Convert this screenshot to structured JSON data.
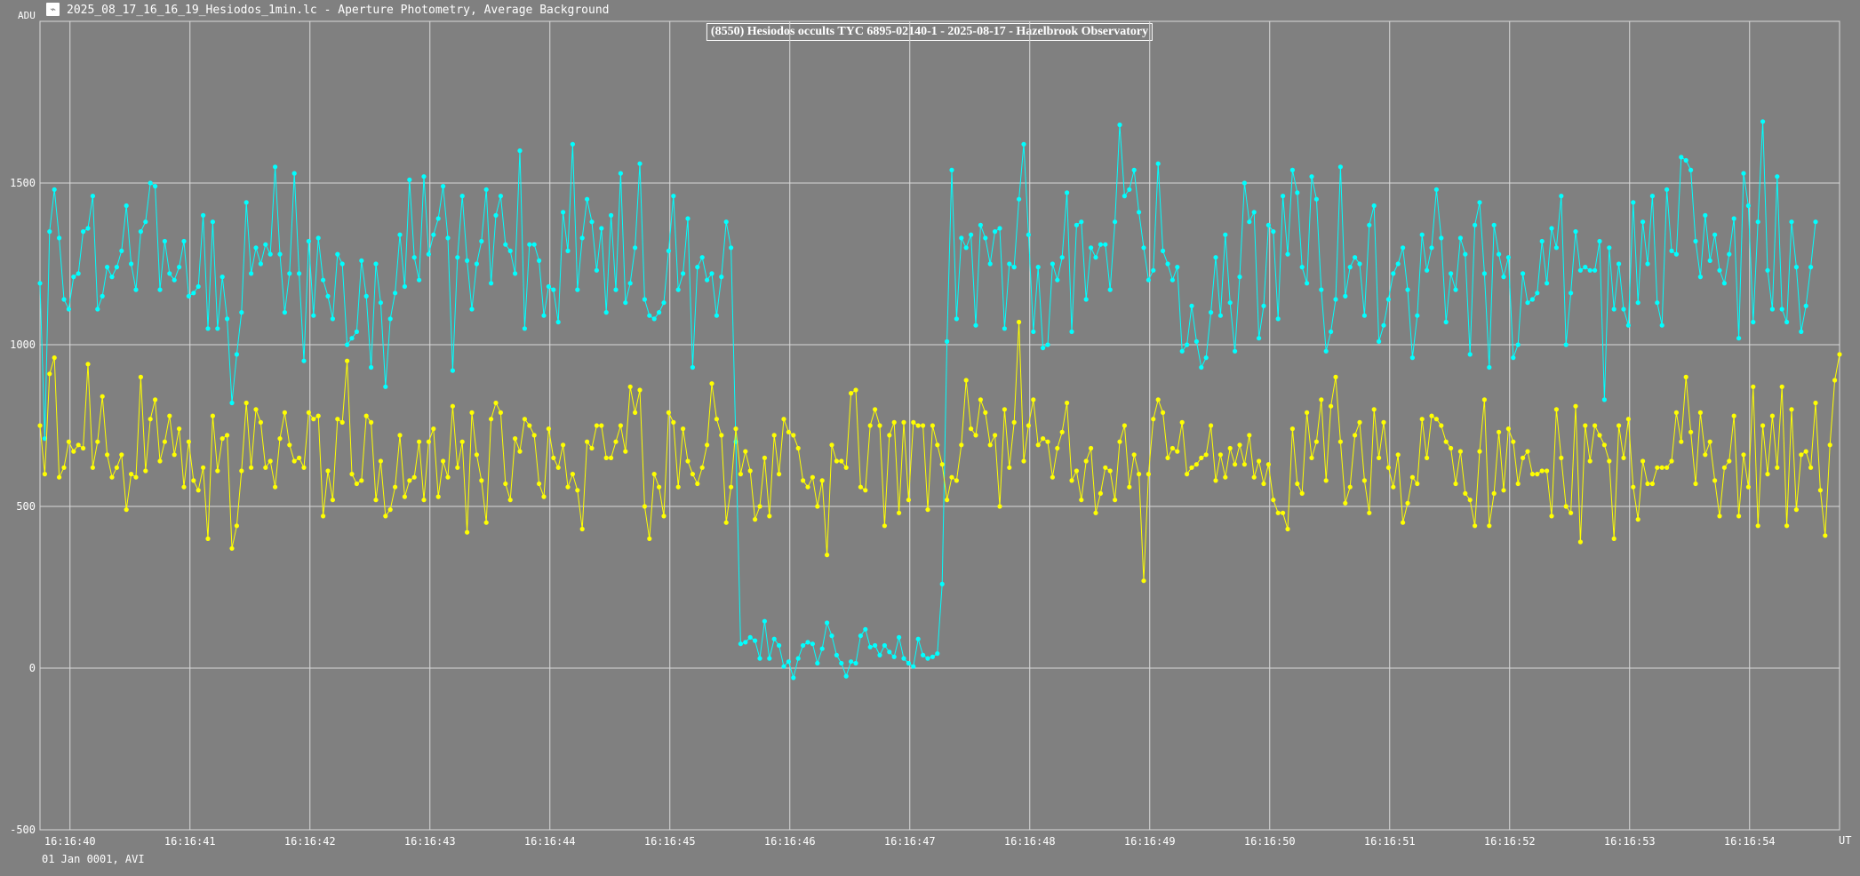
{
  "window": {
    "title": "2025_08_17_16_16_19_Hesiodos_1min.lc - Aperture Photometry, Average Background",
    "icon": "lightcurve-app-icon"
  },
  "footer": {
    "date_note": "01 Jan 0001, AVI"
  },
  "colors": {
    "background": "#808080",
    "grid": "#d8d8d8",
    "target": "#00ffff",
    "comparison": "#ffff00"
  },
  "chart_data": {
    "type": "line",
    "title": "(8550) Hesiodos occults TYC 6895-02140-1 - 2025-08-17 - Hazelbrook Observatory",
    "ylabel": "ADU",
    "xlabel": "UT",
    "ylim": [
      -500,
      2000
    ],
    "xlim": [
      39.75,
      54.75
    ],
    "x_unit": "seconds after 16:16:00 UT",
    "yticks": [
      "-500",
      "0",
      "500",
      "1000",
      "1500"
    ],
    "xticks": [
      "16:16:40",
      "16:16:41",
      "16:16:42",
      "16:16:43",
      "16:16:44",
      "16:16:45",
      "16:16:46",
      "16:16:47",
      "16:16:48",
      "16:16:49",
      "16:16:50",
      "16:16:51",
      "16:16:52",
      "16:16:53",
      "16:16:54"
    ],
    "grid": true,
    "markers": "dots",
    "x_start": 39.75,
    "x_step": 0.04,
    "series": [
      {
        "color": "#00ffff",
        "values": [
          1190,
          710,
          1350,
          1480,
          1330,
          1140,
          1110,
          1210,
          1220,
          1350,
          1360,
          1460,
          1110,
          1150,
          1240,
          1210,
          1240,
          1290,
          1430,
          1250,
          1170,
          1350,
          1380,
          1500,
          1490,
          1170,
          1320,
          1220,
          1200,
          1240,
          1320,
          1150,
          1160,
          1180,
          1400,
          1050,
          1380,
          1050,
          1210,
          1080,
          820,
          970,
          1100,
          1440,
          1220,
          1300,
          1250,
          1310,
          1280,
          1550,
          1280,
          1100,
          1220,
          1530,
          1220,
          950,
          1320,
          1090,
          1330,
          1200,
          1150,
          1080,
          1280,
          1250,
          1000,
          1020,
          1040,
          1260,
          1150,
          930,
          1250,
          1130,
          870,
          1080,
          1160,
          1340,
          1180,
          1510,
          1270,
          1200,
          1520,
          1280,
          1340,
          1390,
          1490,
          1330,
          920,
          1270,
          1460,
          1260,
          1110,
          1250,
          1320,
          1480,
          1190,
          1400,
          1460,
          1310,
          1290,
          1220,
          1600,
          1050,
          1310,
          1310,
          1260,
          1090,
          1180,
          1170,
          1070,
          1410,
          1290,
          1620,
          1170,
          1330,
          1450,
          1380,
          1230,
          1360,
          1100,
          1400,
          1170,
          1530,
          1130,
          1190,
          1300,
          1560,
          1140,
          1090,
          1080,
          1100,
          1130,
          1290,
          1460,
          1170,
          1220,
          1390,
          930,
          1240,
          1270,
          1200,
          1220,
          1090,
          1210,
          1380,
          1300,
          700,
          75,
          80,
          95,
          85,
          30,
          145,
          30,
          90,
          70,
          5,
          20,
          -30,
          30,
          70,
          80,
          75,
          15,
          60,
          140,
          100,
          40,
          15,
          -25,
          20,
          15,
          100,
          120,
          65,
          70,
          40,
          70,
          50,
          35,
          95,
          30,
          15,
          5,
          90,
          40,
          30,
          35,
          45,
          260,
          1010,
          1540,
          1080,
          1330,
          1300,
          1340,
          1060,
          1370,
          1330,
          1250,
          1350,
          1360,
          1050,
          1250,
          1240,
          1450,
          1620,
          1340,
          1040,
          1240,
          990,
          1000,
          1250,
          1200,
          1270,
          1470,
          1040,
          1370,
          1380,
          1140,
          1300,
          1270,
          1310,
          1310,
          1170,
          1380,
          1680,
          1460,
          1480,
          1540,
          1410,
          1300,
          1200,
          1230,
          1560,
          1290,
          1250,
          1200,
          1240,
          980,
          1000,
          1120,
          1010,
          930,
          960,
          1100,
          1270,
          1090,
          1340,
          1130,
          980,
          1210,
          1500,
          1380,
          1410,
          1020,
          1120,
          1370,
          1350,
          1080,
          1460,
          1280,
          1540,
          1470,
          1240,
          1190,
          1520,
          1450,
          1170,
          980,
          1040,
          1140,
          1550,
          1150,
          1240,
          1270,
          1250,
          1090,
          1370,
          1430,
          1010,
          1060,
          1140,
          1220,
          1250,
          1300,
          1170,
          960,
          1090,
          1340,
          1230,
          1300,
          1480,
          1330,
          1070,
          1220,
          1170,
          1330,
          1280,
          970,
          1370,
          1440,
          1220,
          930,
          1370,
          1280,
          1210,
          1270,
          960,
          1000,
          1220,
          1130,
          1140,
          1160,
          1320,
          1190,
          1360,
          1300,
          1460,
          1000,
          1160,
          1350,
          1230,
          1240,
          1230,
          1230,
          1320,
          830,
          1300,
          1110,
          1250,
          1110,
          1060,
          1440,
          1130,
          1380,
          1250,
          1460,
          1130,
          1060,
          1480,
          1290,
          1280,
          1580,
          1570,
          1540,
          1320,
          1210,
          1400,
          1260,
          1340,
          1230,
          1190,
          1280,
          1390,
          1020,
          1530,
          1430,
          1070,
          1380,
          1690,
          1230,
          1110,
          1520,
          1110,
          1070,
          1380,
          1240,
          1040,
          1120,
          1240,
          1380
        ]
      },
      {
        "color": "#ffff00",
        "values": [
          750,
          600,
          910,
          960,
          590,
          620,
          700,
          670,
          690,
          680,
          940,
          620,
          700,
          840,
          660,
          590,
          620,
          660,
          490,
          600,
          590,
          900,
          610,
          770,
          830,
          640,
          700,
          780,
          660,
          740,
          560,
          700,
          580,
          550,
          620,
          400,
          780,
          610,
          710,
          720,
          370,
          440,
          610,
          820,
          620,
          800,
          760,
          620,
          640,
          560,
          710,
          790,
          690,
          640,
          650,
          620,
          790,
          770,
          780,
          470,
          610,
          520,
          770,
          760,
          950,
          600,
          570,
          580,
          780,
          760,
          520,
          640,
          470,
          490,
          560,
          720,
          530,
          580,
          590,
          700,
          520,
          700,
          740,
          530,
          640,
          590,
          810,
          620,
          700,
          420,
          790,
          660,
          580,
          450,
          770,
          820,
          790,
          570,
          520,
          710,
          670,
          770,
          750,
          720,
          570,
          530,
          740,
          650,
          620,
          690,
          560,
          600,
          550,
          430,
          700,
          680,
          750,
          750,
          650,
          650,
          700,
          750,
          670,
          870,
          790,
          860,
          500,
          400,
          600,
          560,
          470,
          790,
          760,
          560,
          740,
          640,
          600,
          570,
          620,
          690,
          880,
          770,
          720,
          450,
          560,
          740,
          600,
          670,
          610,
          460,
          500,
          650,
          470,
          720,
          600,
          770,
          730,
          720,
          680,
          580,
          560,
          590,
          500,
          580,
          350,
          690,
          640,
          640,
          620,
          850,
          860,
          560,
          550,
          750,
          800,
          750,
          440,
          720,
          760,
          480,
          760,
          520,
          760,
          750,
          750,
          490,
          750,
          690,
          630,
          520,
          590,
          580,
          690,
          890,
          740,
          720,
          830,
          790,
          690,
          720,
          500,
          800,
          620,
          760,
          1070,
          640,
          750,
          830,
          690,
          710,
          700,
          590,
          680,
          730,
          820,
          580,
          610,
          520,
          640,
          680,
          480,
          540,
          620,
          610,
          520,
          700,
          750,
          560,
          660,
          600,
          270,
          600,
          770,
          830,
          790,
          650,
          680,
          670,
          760,
          600,
          620,
          630,
          650,
          660,
          750,
          580,
          660,
          590,
          680,
          630,
          690,
          630,
          720,
          590,
          640,
          570,
          630,
          520,
          480,
          480,
          430,
          740,
          570,
          540,
          790,
          650,
          700,
          830,
          580,
          810,
          900,
          700,
          510,
          560,
          720,
          760,
          580,
          480,
          800,
          650,
          760,
          620,
          560,
          660,
          450,
          510,
          590,
          570,
          770,
          650,
          780,
          770,
          750,
          700,
          680,
          570,
          670,
          540,
          520,
          440,
          670,
          830,
          440,
          540,
          730,
          550,
          740,
          700,
          570,
          650,
          670,
          600,
          600,
          610,
          610,
          470,
          800,
          650,
          500,
          480,
          810,
          390,
          750,
          640,
          750,
          720,
          690,
          640,
          400,
          750,
          650,
          770,
          560,
          460,
          640,
          570,
          570,
          620,
          620,
          620,
          640,
          790,
          700,
          900,
          730,
          570,
          790,
          660,
          700,
          580,
          470,
          620,
          640,
          780,
          470,
          660,
          560,
          870,
          440,
          750,
          600,
          780,
          620,
          870,
          440,
          800,
          490,
          660,
          670,
          620,
          820,
          550,
          410,
          690,
          890,
          970
        ]
      }
    ]
  }
}
